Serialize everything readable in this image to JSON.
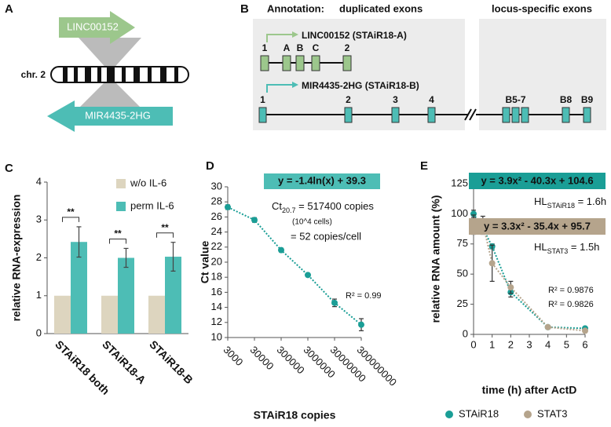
{
  "panel_a": {
    "label": "A",
    "top_gene": "LINC00152",
    "chromosome": "chr. 2",
    "bottom_gene": "MIR4435-2HG"
  },
  "panel_b": {
    "label": "B",
    "annotation": "Annotation:",
    "duplicated": "duplicated exons",
    "locus_specific": "locus-specific exons",
    "transcript_a": "LINC00152 (STAiR18-A)",
    "transcript_b": "MIR4435-2HG (STAiR18-B)",
    "exons_a": [
      "1",
      "A",
      "B",
      "C",
      "2"
    ],
    "exons_b": [
      "1",
      "2",
      "3",
      "4",
      "B5-7",
      "B8",
      "B9"
    ]
  },
  "chart_data": [
    {
      "type": "bar",
      "label": "C",
      "y_label": "relative RNA-expression",
      "categories": [
        "STAiR18 both",
        "STAiR18-A",
        "STAiR18-B"
      ],
      "series": [
        {
          "name": "w/o IL-6",
          "color": "#ddd5bf",
          "values": [
            1,
            1,
            1
          ]
        },
        {
          "name": "perm IL-6",
          "color": "#4dbdb5",
          "values": [
            2.42,
            2.0,
            2.03
          ],
          "errors": [
            0.4,
            0.25,
            0.38
          ]
        }
      ],
      "significance": [
        "**",
        "**",
        "**"
      ],
      "ylim": [
        0,
        4
      ],
      "yticks": [
        0,
        1,
        2,
        3,
        4
      ],
      "legend": "upper right"
    },
    {
      "type": "scatter",
      "label": "D",
      "x_label": "STAiR18 copies",
      "y_label": "Ct value",
      "xscale": "log",
      "color": "#1a9e96",
      "x": [
        3000,
        30000,
        300000,
        3000000,
        30000000,
        300000000
      ],
      "values": [
        27.3,
        25.6,
        21.6,
        18.3,
        14.6,
        11.7
      ],
      "errors": [
        0.3,
        0.3,
        0.25,
        0.2,
        0.5,
        0.8
      ],
      "xlim": [
        3000,
        300000000
      ],
      "xticks": [
        3000,
        30000,
        300000,
        3000000,
        30000000,
        300000000
      ],
      "ylim": [
        10,
        30
      ],
      "yticks": [
        10,
        12,
        14,
        16,
        18,
        20,
        22,
        24,
        26,
        28,
        30
      ],
      "fit_equation": "y = -1.4ln(x) + 39.3",
      "r_squared": "R² = 0.99",
      "ct_label": {
        "main": "Ct",
        "sub": "20.7",
        "rest": " = 517400 copies"
      },
      "cells_note": "(10^4 cells)",
      "per_cell": "= 52 copies/cell"
    },
    {
      "type": "scatter",
      "label": "E",
      "x_label": "time (h) after ActD",
      "y_label": "relative RNA amount (%)",
      "x": [
        0,
        0.5,
        1,
        2,
        4,
        6
      ],
      "series": [
        {
          "name": "STAiR18",
          "color": "#1a9e96",
          "values": [
            100,
            88,
            73,
            35,
            6,
            5
          ],
          "errors": [
            3,
            5,
            2,
            4,
            1,
            1
          ],
          "fit_equation": "y = 3.9x² - 40.3x + 104.6",
          "half_life": {
            "main": "HL",
            "sub": "STAiR18",
            "rest": " = 1.6h"
          },
          "r_squared": "R² = 0.9876"
        },
        {
          "name": "STAT3",
          "color": "#b5a48c",
          "values": [
            91,
            92,
            59,
            39,
            6,
            3
          ],
          "errors": [
            8,
            6,
            15,
            5,
            1,
            1
          ],
          "fit_equation": "y = 3.3x² - 35.4x + 95.7",
          "half_life": {
            "main": "HL",
            "sub": "STAT3",
            "rest": " = 1.5h"
          },
          "r_squared": "R² = 0.9826"
        }
      ],
      "xlim": [
        0,
        6
      ],
      "xticks": [
        0,
        1,
        2,
        3,
        4,
        5,
        6
      ],
      "ylim": [
        0,
        125
      ],
      "yticks": [
        0,
        25,
        50,
        75,
        100,
        125
      ],
      "legend": "bottom"
    }
  ]
}
